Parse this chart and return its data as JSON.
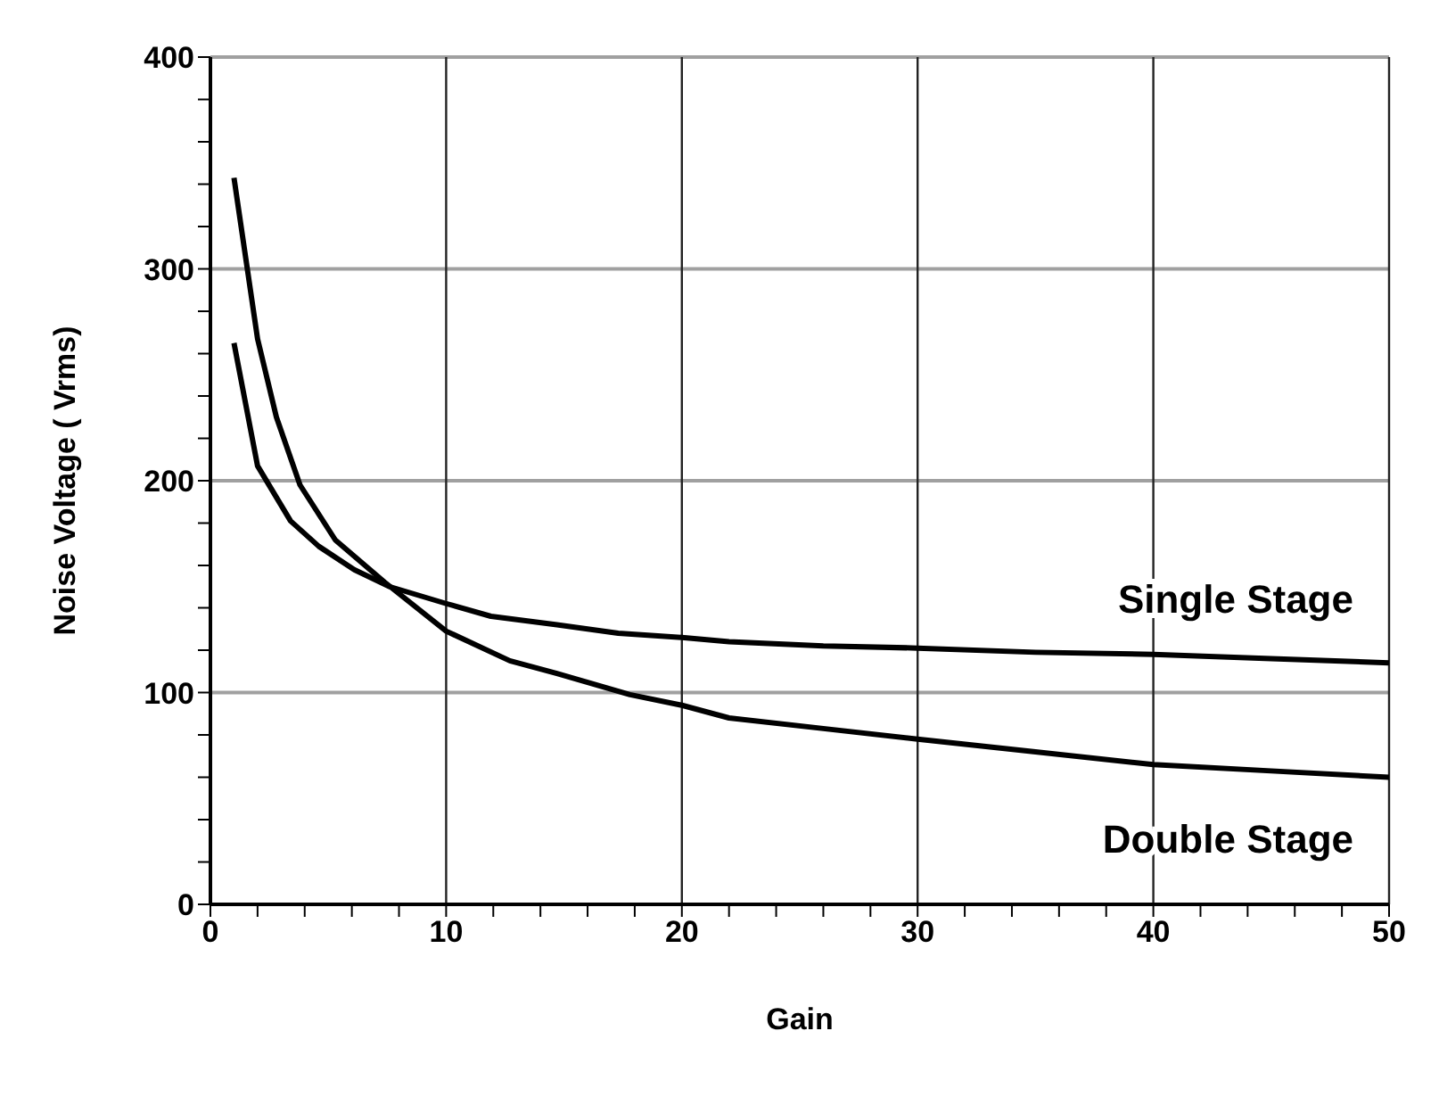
{
  "chart_data": {
    "type": "line",
    "xlabel": "Gain",
    "ylabel": "Noise Voltage (  Vrms)",
    "xlim": [
      0,
      50
    ],
    "ylim": [
      0,
      400
    ],
    "xticks": [
      0,
      {
        "value": 2,
        "label": null
      },
      {
        "value": 4,
        "label": null
      },
      {
        "value": 6,
        "label": null
      },
      {
        "value": 8,
        "label": null
      },
      10,
      {
        "value": 12,
        "label": null
      },
      {
        "value": 14,
        "label": null
      },
      {
        "value": 16,
        "label": null
      },
      {
        "value": 18,
        "label": null
      },
      20,
      {
        "value": 22,
        "label": null
      },
      {
        "value": 24,
        "label": null
      },
      {
        "value": 26,
        "label": null
      },
      {
        "value": 28,
        "label": null
      },
      30,
      {
        "value": 32,
        "label": null
      },
      {
        "value": 34,
        "label": null
      },
      {
        "value": 36,
        "label": null
      },
      {
        "value": 38,
        "label": null
      },
      40,
      {
        "value": 42,
        "label": null
      },
      {
        "value": 44,
        "label": null
      },
      {
        "value": 46,
        "label": null
      },
      {
        "value": 48,
        "label": null
      },
      50
    ],
    "yticks": [
      0,
      {
        "value": 20,
        "label": null
      },
      {
        "value": 40,
        "label": null
      },
      {
        "value": 60,
        "label": null
      },
      {
        "value": 80,
        "label": null
      },
      100,
      {
        "value": 120,
        "label": null
      },
      {
        "value": 140,
        "label": null
      },
      {
        "value": 160,
        "label": null
      },
      {
        "value": 180,
        "label": null
      },
      200,
      {
        "value": 220,
        "label": null
      },
      {
        "value": 240,
        "label": null
      },
      {
        "value": 260,
        "label": null
      },
      {
        "value": 280,
        "label": null
      },
      300,
      {
        "value": 320,
        "label": null
      },
      {
        "value": 340,
        "label": null
      },
      {
        "value": 360,
        "label": null
      },
      {
        "value": 380,
        "label": null
      },
      400
    ],
    "grid": true,
    "marker": "none",
    "line_style": "solid",
    "series": [
      {
        "name": "Single Stage",
        "color": "#000000",
        "x": [
          1,
          2,
          3.4,
          4.6,
          6.1,
          7.6,
          10,
          11.9,
          14.7,
          17.3,
          20,
          22,
          26,
          30,
          35,
          40,
          45,
          50
        ],
        "values": [
          265,
          207,
          181,
          169,
          158,
          150,
          142,
          136,
          132,
          128,
          126,
          124,
          122,
          121,
          119,
          118,
          116,
          114
        ]
      },
      {
        "name": "Double Stage",
        "color": "#000000",
        "x": [
          1,
          2,
          2.8,
          3.8,
          5.3,
          7.4,
          10,
          12.7,
          14.7,
          17.8,
          20,
          22,
          26,
          30,
          35,
          40,
          45,
          50
        ],
        "values": [
          343,
          267,
          230,
          198,
          172,
          152,
          129,
          115,
          109,
          99,
          94,
          88,
          83,
          78,
          72,
          66,
          63,
          60
        ]
      }
    ]
  }
}
